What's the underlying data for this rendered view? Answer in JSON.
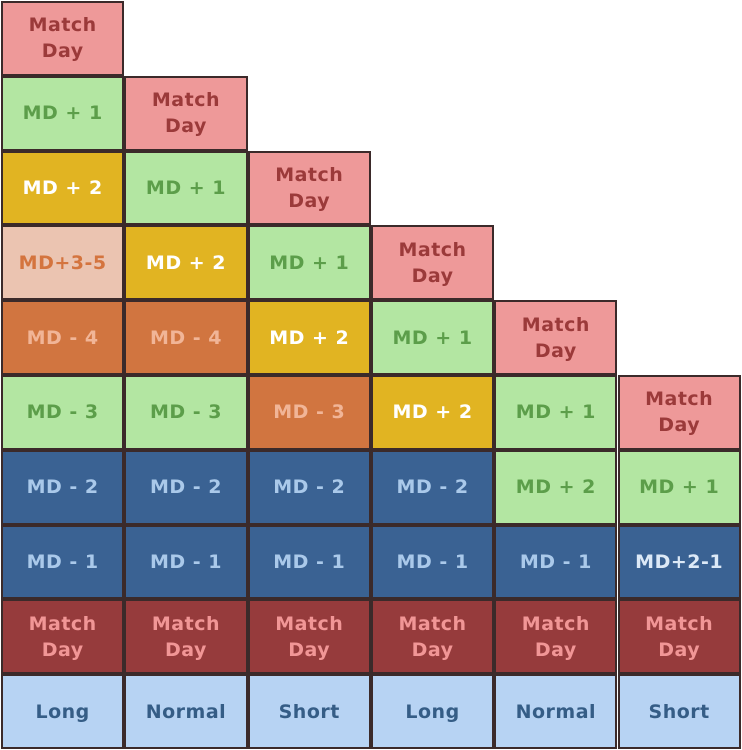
{
  "styles": {
    "match-day": {
      "bg": "#ee9999",
      "fg": "#9b3a3a"
    },
    "md-plus-1": {
      "bg": "#b3e6a2",
      "fg": "#5c9e4a"
    },
    "md-plus-2-green": {
      "bg": "#b3e6a2",
      "fg": "#5c9e4a"
    },
    "md-plus-2-gold": {
      "bg": "#e1b422",
      "fg": "#ffffff"
    },
    "md-3-5": {
      "bg": "#ebc4b1",
      "fg": "#d4743e"
    },
    "md-minus-4": {
      "bg": "#d17540",
      "fg": "#f1b597"
    },
    "md-minus-3-green": {
      "bg": "#b3e6a2",
      "fg": "#5c9e4a"
    },
    "md-minus-3-orange": {
      "bg": "#d17540",
      "fg": "#f1b597"
    },
    "md-minus-2-blue": {
      "bg": "#3a6293",
      "fg": "#aac9ea"
    },
    "md-minus-1": {
      "bg": "#3a6293",
      "fg": "#aac9ea"
    },
    "md-2-1": {
      "bg": "#3a6293",
      "fg": "#dce9f7"
    },
    "match-day-dark": {
      "bg": "#963b3c",
      "fg": "#f19696"
    },
    "footer": {
      "bg": "#b7d3f3",
      "fg": "#355d86"
    }
  },
  "columns": [
    {
      "label": "Long",
      "cells": [
        {
          "text": "Match\nDay",
          "style": "match-day"
        },
        {
          "text": "MD + 1",
          "style": "md-plus-1"
        },
        {
          "text": "MD + 2",
          "style": "md-plus-2-gold"
        },
        {
          "text": "MD+3-5",
          "style": "md-3-5"
        },
        {
          "text": "MD - 4",
          "style": "md-minus-4"
        },
        {
          "text": "MD - 3",
          "style": "md-minus-3-green"
        },
        {
          "text": "MD - 2",
          "style": "md-minus-2-blue"
        },
        {
          "text": "MD - 1",
          "style": "md-minus-1"
        },
        {
          "text": "Match\nDay",
          "style": "match-day-dark"
        }
      ]
    },
    {
      "label": "Normal",
      "cells": [
        {
          "text": "Match\nDay",
          "style": "match-day"
        },
        {
          "text": "MD + 1",
          "style": "md-plus-1"
        },
        {
          "text": "MD + 2",
          "style": "md-plus-2-gold"
        },
        {
          "text": "MD - 4",
          "style": "md-minus-4"
        },
        {
          "text": "MD - 3",
          "style": "md-minus-3-green"
        },
        {
          "text": "MD - 2",
          "style": "md-minus-2-blue"
        },
        {
          "text": "MD - 1",
          "style": "md-minus-1"
        },
        {
          "text": "Match\nDay",
          "style": "match-day-dark"
        }
      ]
    },
    {
      "label": "Short",
      "cells": [
        {
          "text": "Match\nDay",
          "style": "match-day"
        },
        {
          "text": "MD + 1",
          "style": "md-plus-1"
        },
        {
          "text": "MD + 2",
          "style": "md-plus-2-gold"
        },
        {
          "text": "MD - 3",
          "style": "md-minus-3-orange"
        },
        {
          "text": "MD - 2",
          "style": "md-minus-2-blue"
        },
        {
          "text": "MD - 1",
          "style": "md-minus-1"
        },
        {
          "text": "Match\nDay",
          "style": "match-day-dark"
        }
      ]
    },
    {
      "label": "Long",
      "cells": [
        {
          "text": "Match\nDay",
          "style": "match-day"
        },
        {
          "text": "MD + 1",
          "style": "md-plus-1"
        },
        {
          "text": "MD + 2",
          "style": "md-plus-2-gold"
        },
        {
          "text": "MD - 2",
          "style": "md-minus-2-blue"
        },
        {
          "text": "MD - 1",
          "style": "md-minus-1"
        },
        {
          "text": "Match\nDay",
          "style": "match-day-dark"
        }
      ]
    },
    {
      "label": "Normal",
      "cells": [
        {
          "text": "Match\nDay",
          "style": "match-day"
        },
        {
          "text": "MD + 1",
          "style": "md-plus-1"
        },
        {
          "text": "MD + 2",
          "style": "md-plus-2-green"
        },
        {
          "text": "MD - 1",
          "style": "md-minus-1"
        },
        {
          "text": "Match\nDay",
          "style": "match-day-dark"
        }
      ]
    },
    {
      "label": "Short",
      "cells": [
        {
          "text": "Match\nDay",
          "style": "match-day"
        },
        {
          "text": "MD + 1",
          "style": "md-plus-1"
        },
        {
          "text": "MD+2-1",
          "style": "md-2-1"
        },
        {
          "text": "Match\nDay",
          "style": "match-day-dark"
        }
      ]
    }
  ]
}
